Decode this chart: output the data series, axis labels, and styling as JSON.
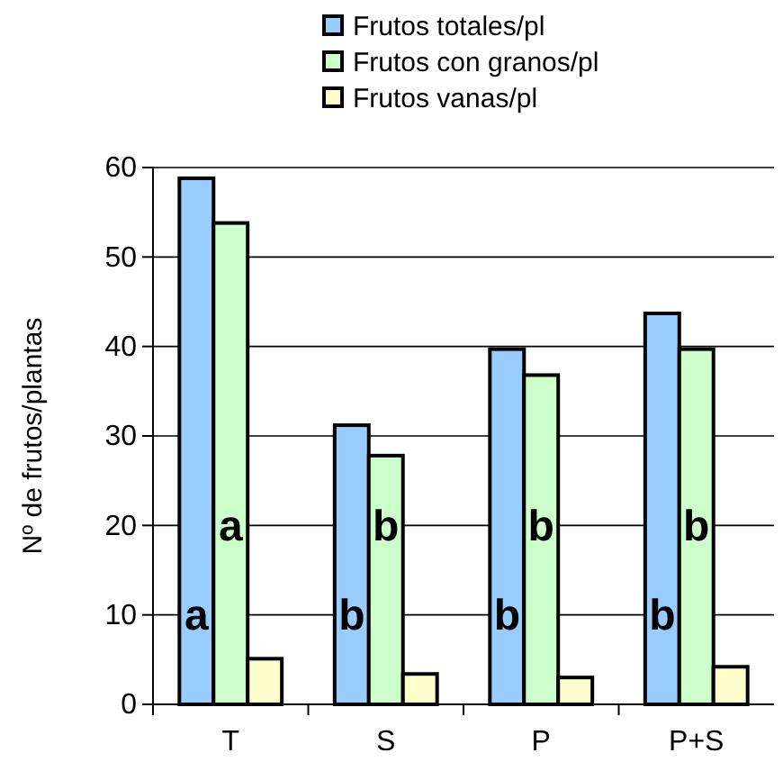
{
  "chart_data": {
    "type": "bar",
    "ylabel": "Nº de frutos/plantas",
    "categories": [
      "T",
      "S",
      "P",
      "P+S"
    ],
    "series": [
      {
        "name": "Frutos totales/pl",
        "color": "#99ccff",
        "values": [
          58.8,
          31.2,
          39.7,
          43.7
        ]
      },
      {
        "name": "Frutos con granos/pl",
        "color": "#ccffcc",
        "values": [
          53.8,
          27.8,
          36.8,
          39.7
        ]
      },
      {
        "name": "Frutos vanas/pl",
        "color": "#ffffcc",
        "values": [
          5.1,
          3.4,
          3.0,
          4.2
        ]
      }
    ],
    "ylim": [
      0,
      60
    ],
    "yticks": [
      0,
      10,
      20,
      30,
      40,
      50,
      60
    ],
    "grid": "y",
    "legend": "top",
    "annotations": [
      "a",
      "a",
      "b",
      "b",
      "b",
      "b",
      "b",
      "b"
    ]
  }
}
